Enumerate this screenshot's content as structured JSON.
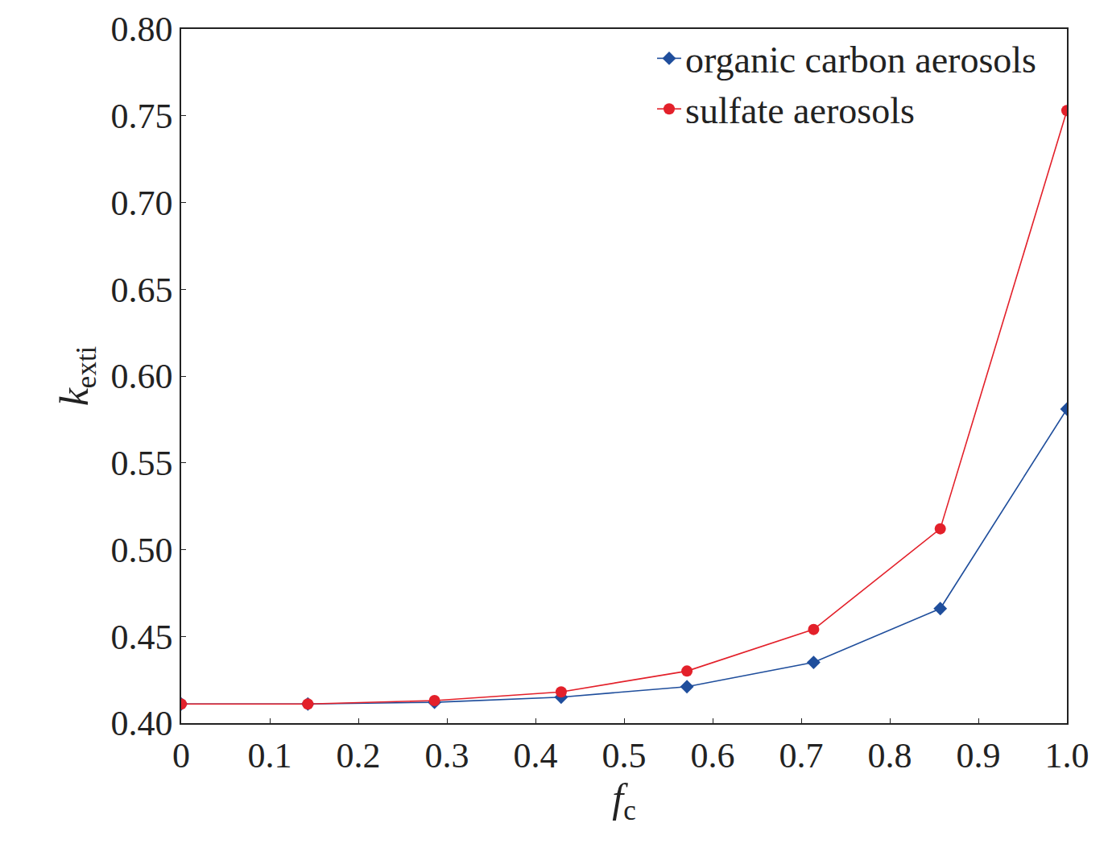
{
  "chart_data": {
    "type": "line",
    "x_label": {
      "text": "f",
      "subscript": "c"
    },
    "y_label": {
      "text": "k",
      "subscript": "exti"
    },
    "x": [
      0,
      0.143,
      0.286,
      0.429,
      0.571,
      0.714,
      0.857,
      1.0
    ],
    "series": [
      {
        "name": "organic carbon aerosols",
        "color": "#1f4e9c",
        "marker": "diamond",
        "line_style": "solid",
        "values": [
          0.411,
          0.411,
          0.412,
          0.415,
          0.421,
          0.435,
          0.466,
          0.581
        ]
      },
      {
        "name": "sulfate aerosols",
        "color": "#e3202a",
        "marker": "circle",
        "line_style": "solid",
        "values": [
          0.411,
          0.411,
          0.413,
          0.418,
          0.43,
          0.454,
          0.512,
          0.753
        ]
      }
    ],
    "xlim": [
      0,
      1.0
    ],
    "xticks": [
      0,
      0.1,
      0.2,
      0.3,
      0.4,
      0.5,
      0.6,
      0.7,
      0.8,
      0.9,
      {
        "value": 1.0,
        "label": "1.0"
      }
    ],
    "ylim": [
      0.4,
      0.8
    ],
    "yticks": [
      {
        "value": 0.4,
        "label": "0.40"
      },
      0.45,
      {
        "value": 0.5,
        "label": "0.50"
      },
      0.55,
      {
        "value": 0.6,
        "label": "0.60"
      },
      0.65,
      {
        "value": 0.7,
        "label": "0.70"
      },
      0.75,
      {
        "value": 0.8,
        "label": "0.80"
      }
    ],
    "grid": false,
    "legend": "top-right"
  }
}
